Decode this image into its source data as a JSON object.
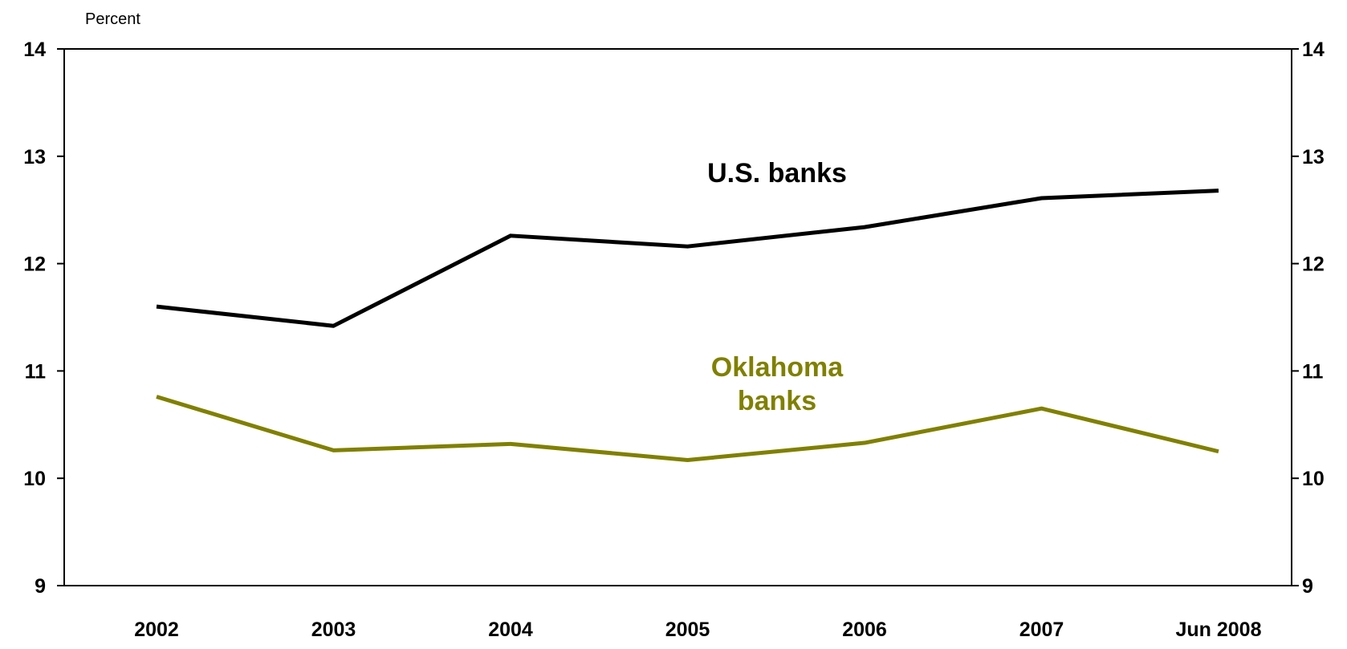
{
  "chart_data": {
    "type": "line",
    "unit_label": "Percent",
    "categories": [
      "2002",
      "2003",
      "2004",
      "2005",
      "2006",
      "2007",
      "Jun 2008"
    ],
    "ylim": [
      9,
      14
    ],
    "yticks": [
      "9",
      "10",
      "11",
      "12",
      "13",
      "14"
    ],
    "grid": false,
    "legend": "inline labels",
    "series": [
      {
        "name": "U.S. banks",
        "label_lines": [
          "U.S. banks"
        ],
        "color": "#000000",
        "values": [
          11.6,
          11.42,
          12.26,
          12.16,
          12.34,
          12.61,
          12.68
        ]
      },
      {
        "name": "Oklahoma banks",
        "label_lines": [
          "Oklahoma",
          "banks"
        ],
        "color": "#808000",
        "values": [
          10.76,
          10.26,
          10.32,
          10.17,
          10.33,
          10.65,
          10.25
        ]
      }
    ]
  }
}
